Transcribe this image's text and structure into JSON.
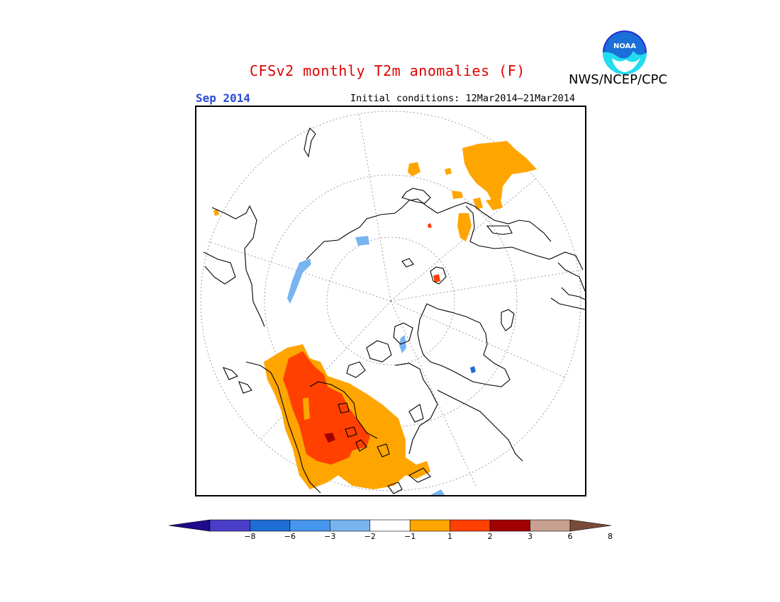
{
  "header": {
    "title": "CFSv2 monthly T2m anomalies (F)",
    "month": "Sep 2014",
    "initial_conditions": "Initial conditions: 12Mar2014–21Mar2014",
    "agency": "NWS/NCEP/CPC",
    "logo_text": "NOAA"
  },
  "map": {
    "projection": "north-polar-stereographic",
    "variable": "2m temperature anomaly",
    "units": "F",
    "anomaly_regions": [
      {
        "region": "Western North America",
        "category": "1 to 2"
      },
      {
        "region": "Western North America interior",
        "category": "2 to 3"
      },
      {
        "region": "Western North America core",
        "category": "3 to 6"
      },
      {
        "region": "Northeast Siberia",
        "category": "1 to 2"
      },
      {
        "region": "Russian Arctic coast",
        "category": "1 to 2"
      },
      {
        "region": "Baffin Bay",
        "category": "-2 to -1"
      },
      {
        "region": "Arctic Siberian coast",
        "category": "-2 to -1"
      },
      {
        "region": "Central Greenland",
        "category": "-2 to -1"
      }
    ]
  },
  "colorbar": {
    "labels": [
      "−8",
      "−6",
      "−3",
      "−2",
      "−1",
      "1",
      "2",
      "3",
      "6",
      "8"
    ],
    "colors": [
      "#1e0a8c",
      "#4a3ec8",
      "#1e6ed4",
      "#4696ee",
      "#78b4f0",
      "#ffffff",
      "#ffa500",
      "#ff4000",
      "#a00000",
      "#c8a090",
      "#7a4a3a"
    ]
  }
}
